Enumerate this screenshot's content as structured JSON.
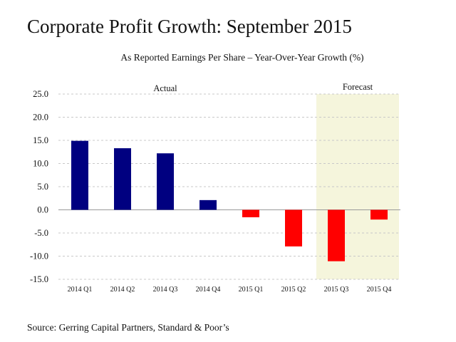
{
  "chart_data": {
    "type": "bar",
    "title": "Corporate Profit Growth: September 2015",
    "subtitle": "As Reported Earnings Per Share – Year-Over-Year Growth (%)",
    "source": "Source: Gerring Capital Partners, Standard & Poor’s",
    "categories": [
      "2014 Q1",
      "2014 Q2",
      "2014 Q3",
      "2014 Q4",
      "2015 Q1",
      "2015 Q2",
      "2015 Q3",
      "2015 Q4"
    ],
    "values": [
      14.9,
      13.3,
      12.2,
      2.1,
      -1.6,
      -7.9,
      -11.1,
      -2.1
    ],
    "ylim": [
      -15,
      25
    ],
    "yticks": [
      "-15.0",
      "-10.0",
      "-5.0",
      "0.0",
      "5.0",
      "10.0",
      "15.0",
      "20.0",
      "25.0"
    ],
    "grid": true,
    "positive_color": "#000080",
    "negative_color": "#ff0000",
    "regions": [
      {
        "label": "Actual",
        "from_index": 0,
        "to_index": 5,
        "shaded": false
      },
      {
        "label": "Forecast",
        "from_index": 6,
        "to_index": 7,
        "shaded": true,
        "color": "#f5f5dc"
      }
    ]
  }
}
